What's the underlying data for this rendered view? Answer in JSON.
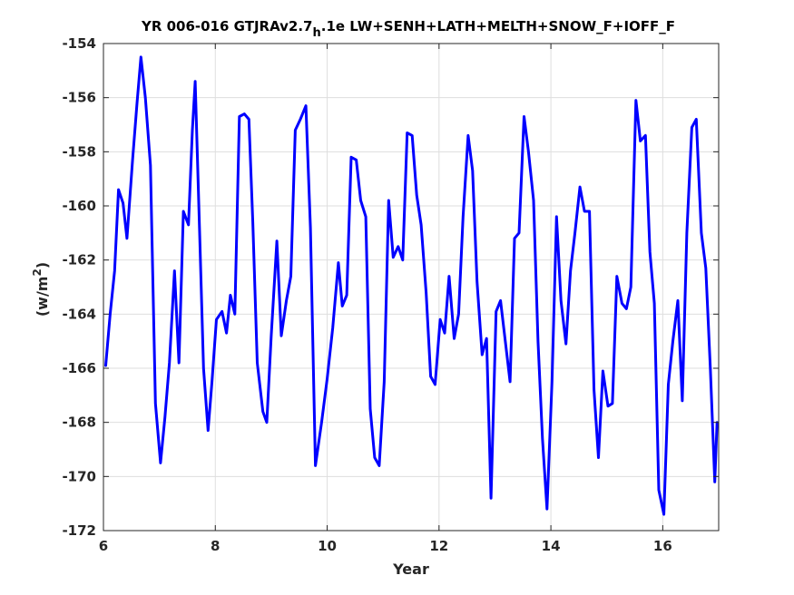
{
  "chart_data": {
    "type": "line",
    "title": {
      "before_sub": "YR 006-016 GTJRAv2.7",
      "subscript": "h",
      "after_sub": ".1e LW+SENH+LATH+MELTH+SNOW_F+IOFF_F"
    },
    "xlabel": "Year",
    "ylabel": {
      "main": "(w/m",
      "superscript": "2",
      "close": ")"
    },
    "xlim": [
      6,
      17
    ],
    "ylim": [
      -172,
      -154
    ],
    "xticks": [
      6,
      8,
      10,
      12,
      14,
      16
    ],
    "xtick_labels": [
      "6",
      "8",
      "10",
      "12",
      "14",
      "16"
    ],
    "yticks": [
      -172,
      -170,
      -168,
      -166,
      -164,
      -162,
      -160,
      -158,
      -156,
      -154
    ],
    "ytick_labels": [
      "-172",
      "-170",
      "-168",
      "-166",
      "-164",
      "-162",
      "-160",
      "-158",
      "-156",
      "-154"
    ],
    "grid": true,
    "series": [
      {
        "color": "#0000ff",
        "x": [
          6.04,
          6.12,
          6.2,
          6.27,
          6.35,
          6.42,
          6.52,
          6.6,
          6.67,
          6.75,
          6.84,
          6.93,
          7.02,
          7.1,
          7.18,
          7.27,
          7.35,
          7.43,
          7.52,
          7.59,
          7.64,
          7.72,
          7.79,
          7.87,
          7.94,
          8.02,
          8.12,
          8.2,
          8.27,
          8.35,
          8.43,
          8.52,
          8.6,
          8.67,
          8.75,
          8.85,
          8.92,
          9.0,
          9.1,
          9.18,
          9.27,
          9.35,
          9.43,
          9.52,
          9.62,
          9.7,
          9.79,
          9.9,
          10.0,
          10.1,
          10.2,
          10.27,
          10.35,
          10.43,
          10.52,
          10.6,
          10.69,
          10.77,
          10.85,
          10.93,
          11.02,
          11.1,
          11.18,
          11.27,
          11.35,
          11.43,
          11.52,
          11.6,
          11.68,
          11.77,
          11.85,
          11.93,
          12.02,
          12.1,
          12.18,
          12.27,
          12.35,
          12.43,
          12.52,
          12.6,
          12.68,
          12.77,
          12.85,
          12.93,
          13.02,
          13.1,
          13.18,
          13.27,
          13.35,
          13.43,
          13.52,
          13.6,
          13.69,
          13.77,
          13.85,
          13.93,
          14.02,
          14.1,
          14.18,
          14.27,
          14.35,
          14.43,
          14.52,
          14.6,
          14.69,
          14.77,
          14.85,
          14.93,
          15.02,
          15.1,
          15.18,
          15.27,
          15.35,
          15.43,
          15.52,
          15.6,
          15.69,
          15.77,
          15.85,
          15.93,
          16.02,
          16.1,
          16.18,
          16.27,
          16.35,
          16.43,
          16.52,
          16.6,
          16.69,
          16.77,
          16.85,
          16.93,
          16.97
        ],
        "y": [
          -165.9,
          -164.0,
          -162.4,
          -159.4,
          -159.9,
          -161.2,
          -158.3,
          -156.2,
          -154.5,
          -156.0,
          -158.5,
          -167.3,
          -169.5,
          -167.8,
          -165.8,
          -162.4,
          -165.8,
          -160.2,
          -160.7,
          -157.2,
          -155.4,
          -161.0,
          -166.0,
          -168.3,
          -166.5,
          -164.2,
          -163.9,
          -164.7,
          -163.3,
          -164.0,
          -156.7,
          -156.6,
          -156.8,
          -160.6,
          -165.8,
          -167.6,
          -168.0,
          -164.8,
          -161.3,
          -164.8,
          -163.5,
          -162.6,
          -157.2,
          -156.8,
          -156.3,
          -160.8,
          -169.6,
          -168.0,
          -166.4,
          -164.5,
          -162.1,
          -163.7,
          -163.3,
          -158.2,
          -158.3,
          -159.8,
          -160.4,
          -167.5,
          -169.3,
          -169.6,
          -166.5,
          -159.8,
          -161.9,
          -161.5,
          -162.0,
          -157.3,
          -157.4,
          -159.6,
          -160.7,
          -163.2,
          -166.3,
          -166.6,
          -164.2,
          -164.7,
          -162.6,
          -164.9,
          -164.0,
          -160.4,
          -157.4,
          -158.7,
          -162.8,
          -165.5,
          -164.9,
          -170.8,
          -163.9,
          -163.5,
          -164.9,
          -166.5,
          -161.2,
          -161.0,
          -156.7,
          -158.0,
          -159.8,
          -165.0,
          -168.6,
          -171.2,
          -166.5,
          -160.4,
          -163.5,
          -165.1,
          -162.4,
          -161.0,
          -159.3,
          -160.2,
          -160.2,
          -166.8,
          -169.3,
          -166.1,
          -167.4,
          -167.3,
          -162.6,
          -163.6,
          -163.8,
          -163.0,
          -156.1,
          -157.6,
          -157.4,
          -161.7,
          -163.6,
          -170.5,
          -171.4,
          -166.6,
          -165.0,
          -163.5,
          -167.2,
          -161.0,
          -157.1,
          -156.8,
          -161.0,
          -162.3,
          -166.0,
          -170.2,
          -168.0
        ]
      }
    ]
  }
}
